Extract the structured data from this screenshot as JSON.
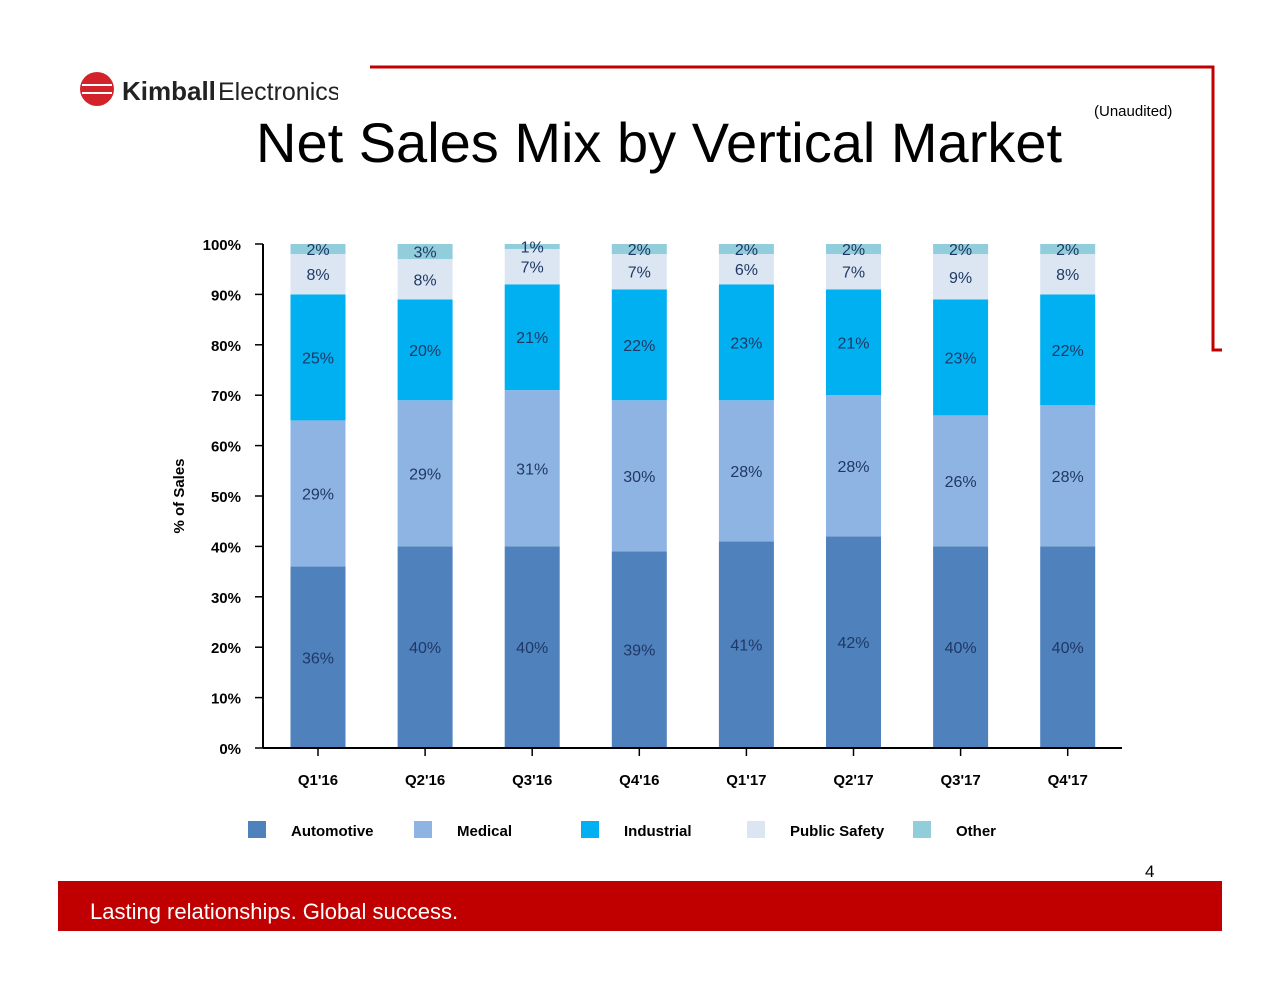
{
  "header": {
    "title": "Net Sales Mix by Vertical Market",
    "note": "(Unaudited)",
    "logo_text": "Kimball Electronics"
  },
  "footer": {
    "tagline": "Lasting relationships. Global success.",
    "page_number": "4"
  },
  "colors": {
    "brand_red": "#c00000"
  },
  "chart_data": {
    "type": "bar",
    "stacked": true,
    "title": "",
    "xlabel": "",
    "ylabel": "% of Sales",
    "ylim": [
      0,
      100
    ],
    "yticks": [
      "0%",
      "10%",
      "20%",
      "30%",
      "40%",
      "50%",
      "60%",
      "70%",
      "80%",
      "90%",
      "100%"
    ],
    "grid": false,
    "legend_position": "bottom",
    "categories": [
      "Q1'16",
      "Q2'16",
      "Q3'16",
      "Q4'16",
      "Q1'17",
      "Q2'17",
      "Q3'17",
      "Q4'17"
    ],
    "series": [
      {
        "name": "Automotive",
        "color": "#4f81bd",
        "values": [
          36,
          40,
          40,
          39,
          41,
          42,
          40,
          40
        ]
      },
      {
        "name": "Medical",
        "color": "#8eb4e3",
        "values": [
          29,
          29,
          31,
          30,
          28,
          28,
          26,
          28
        ]
      },
      {
        "name": "Industrial",
        "color": "#00b0f0",
        "values": [
          25,
          20,
          21,
          22,
          23,
          21,
          23,
          22
        ]
      },
      {
        "name": "Public Safety",
        "color": "#dce6f2",
        "values": [
          8,
          8,
          7,
          7,
          6,
          7,
          9,
          8
        ]
      },
      {
        "name": "Other",
        "color": "#92cddc",
        "values": [
          2,
          3,
          1,
          2,
          2,
          2,
          2,
          2
        ]
      }
    ],
    "label_color": "#1f3864"
  }
}
